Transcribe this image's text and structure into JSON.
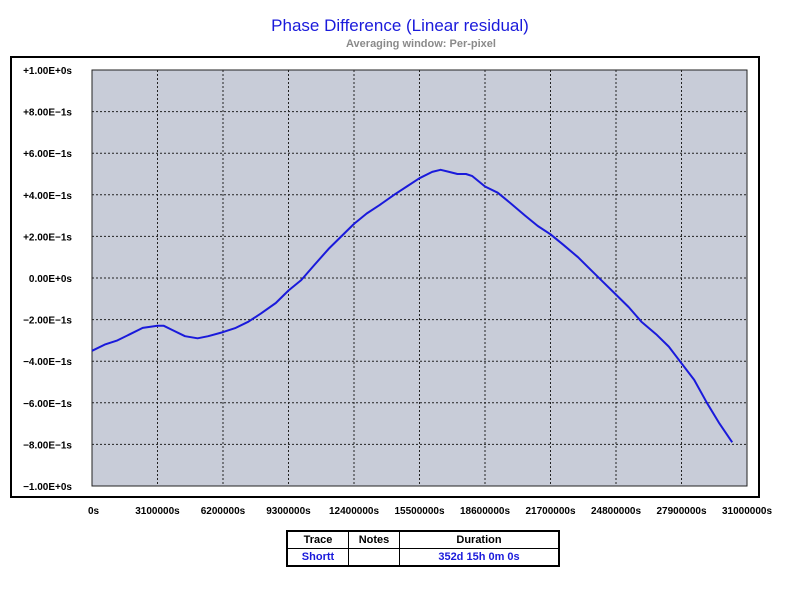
{
  "chart": {
    "title": "Phase Difference (Linear residual)",
    "subtitle": "Averaging window: Per-pixel"
  },
  "colors": {
    "series": "#1a1adb",
    "plot_background": "#c8ccd8",
    "zero_label": "#1a1adb"
  },
  "chart_data": {
    "type": "line",
    "title": "Phase Difference (Linear residual)",
    "subtitle": "Averaging window: Per-pixel",
    "xlabel": "",
    "ylabel": "",
    "xlim": [
      0,
      31000000
    ],
    "ylim": [
      -1.0,
      1.0
    ],
    "x_ticks": [
      0,
      3100000,
      6200000,
      9300000,
      12400000,
      15500000,
      18600000,
      21700000,
      24800000,
      27900000,
      31000000
    ],
    "x_tick_labels": [
      "0s",
      "3100000s",
      "6200000s",
      "9300000s",
      "12400000s",
      "15500000s",
      "18600000s",
      "21700000s",
      "24800000s",
      "27900000s",
      "31000000s"
    ],
    "y_ticks": [
      1.0,
      0.8,
      0.6,
      0.4,
      0.2,
      0.0,
      -0.2,
      -0.4,
      -0.6,
      -0.8,
      -1.0
    ],
    "y_tick_labels": [
      "+1.00E+0s",
      "+8.00E−1s",
      "+6.00E−1s",
      "+4.00E−1s",
      "+2.00E−1s",
      "0.00E+0s",
      "−2.00E−1s",
      "−4.00E−1s",
      "−6.00E−1s",
      "−8.00E−1s",
      "−1.00E+0s"
    ],
    "grid": true,
    "series": [
      {
        "name": "Shortt",
        "x": [
          0,
          600000,
          1200000,
          1800000,
          2400000,
          3100000,
          3400000,
          3800000,
          4400000,
          5000000,
          5500000,
          6200000,
          6800000,
          7400000,
          8000000,
          8700000,
          9300000,
          9900000,
          10500000,
          11200000,
          11800000,
          12400000,
          13000000,
          13600000,
          14300000,
          14900000,
          15500000,
          16100000,
          16500000,
          16900000,
          17300000,
          17700000,
          18000000,
          18600000,
          19200000,
          19800000,
          20500000,
          21100000,
          21700000,
          22300000,
          23000000,
          23600000,
          24200000,
          24800000,
          25400000,
          26000000,
          26700000,
          27300000,
          27900000,
          28500000,
          29100000,
          29700000,
          30300000
        ],
        "y": [
          -0.35,
          -0.32,
          -0.3,
          -0.27,
          -0.24,
          -0.23,
          -0.23,
          -0.25,
          -0.28,
          -0.29,
          -0.28,
          -0.26,
          -0.24,
          -0.21,
          -0.17,
          -0.12,
          -0.06,
          -0.01,
          0.06,
          0.14,
          0.2,
          0.26,
          0.31,
          0.35,
          0.4,
          0.44,
          0.48,
          0.51,
          0.52,
          0.51,
          0.5,
          0.5,
          0.49,
          0.44,
          0.41,
          0.36,
          0.3,
          0.25,
          0.21,
          0.16,
          0.1,
          0.04,
          -0.02,
          -0.08,
          -0.14,
          -0.21,
          -0.27,
          -0.33,
          -0.41,
          -0.49,
          -0.6,
          -0.7,
          -0.79
        ]
      }
    ]
  },
  "legend_table": {
    "headers": {
      "trace": "Trace",
      "notes": "Notes",
      "duration": "Duration"
    },
    "rows": [
      {
        "trace": "Shortt",
        "notes": "",
        "duration": "352d 15h 0m 0s"
      }
    ]
  }
}
